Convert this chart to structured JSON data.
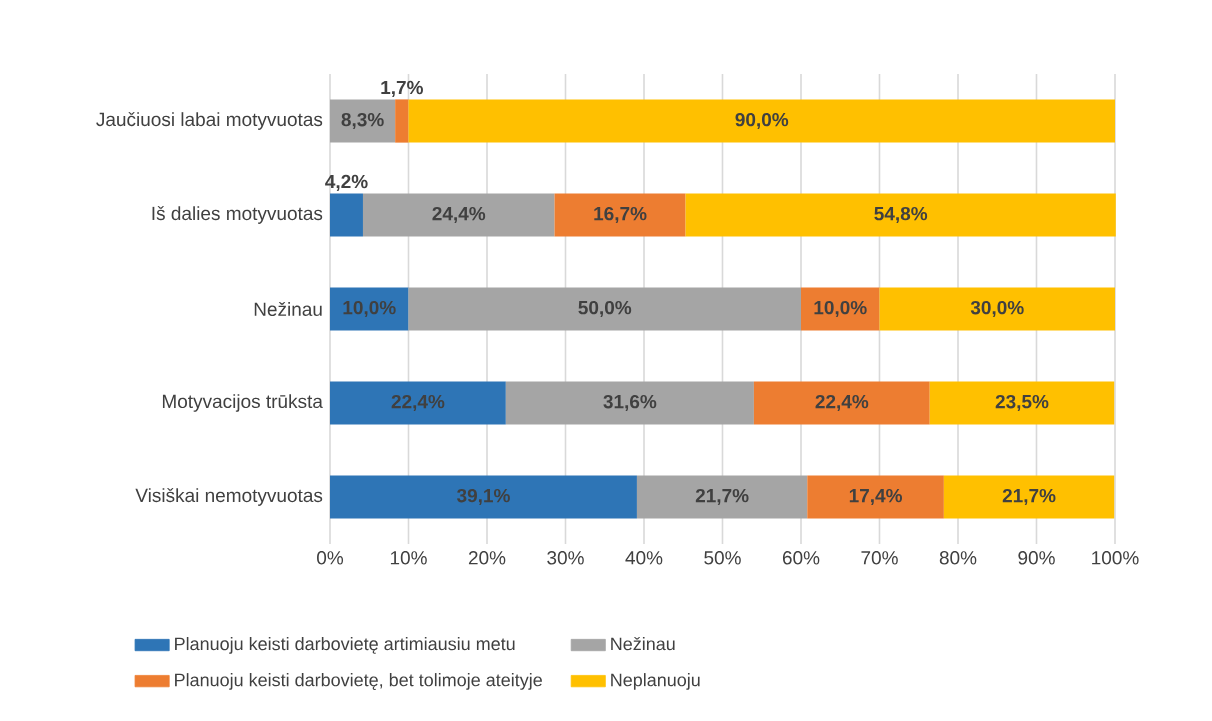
{
  "chart_data": {
    "type": "bar",
    "orientation": "horizontal",
    "stacked": true,
    "categories": [
      "Jaučiuosi labai motyvuotas",
      "Iš dalies motyvuotas",
      "Nežinau",
      "Motyvacijos trūksta",
      "Visiškai nemotyvuotas"
    ],
    "series": [
      {
        "name": "Planuoju keisti darbovietę artimiausiu metu",
        "color": "#2e75b6",
        "values": [
          null,
          4.2,
          10.0,
          22.4,
          39.1
        ],
        "value_labels": [
          null,
          "4,2%",
          "10,0%",
          "22,4%",
          "39,1%"
        ]
      },
      {
        "name": "Nežinau",
        "color": "#a5a5a5",
        "values": [
          8.3,
          24.4,
          50.0,
          31.6,
          21.7
        ],
        "value_labels": [
          "8,3%",
          "24,4%",
          "50,0%",
          "31,6%",
          "21,7%"
        ]
      },
      {
        "name": "Planuoju keisti darbovietę, bet tolimoje ateityje",
        "color": "#ed7d31",
        "values": [
          1.7,
          16.7,
          10.0,
          22.4,
          17.4
        ],
        "value_labels": [
          "1,7%",
          "16,7%",
          "10,0%",
          "22,4%",
          "17,4%"
        ]
      },
      {
        "name": "Neplanuoju",
        "color": "#ffc000",
        "values": [
          90.0,
          54.8,
          30.0,
          23.5,
          21.7
        ],
        "value_labels": [
          "90,0%",
          "54,8%",
          "30,0%",
          "23,5%",
          "21,7%"
        ]
      }
    ],
    "xlim": [
      0,
      100
    ],
    "xticks": [
      {
        "value": 0,
        "label": "0%"
      },
      {
        "value": 10,
        "label": "10%"
      },
      {
        "value": 20,
        "label": "20%"
      },
      {
        "value": 30,
        "label": "30%"
      },
      {
        "value": 40,
        "label": "40%"
      },
      {
        "value": 50,
        "label": "50%"
      },
      {
        "value": 60,
        "label": "60%"
      },
      {
        "value": 70,
        "label": "70%"
      },
      {
        "value": 80,
        "label": "80%"
      },
      {
        "value": 90,
        "label": "90%"
      },
      {
        "value": 100,
        "label": "100%"
      }
    ],
    "grid": "x",
    "legend": "bottom"
  }
}
